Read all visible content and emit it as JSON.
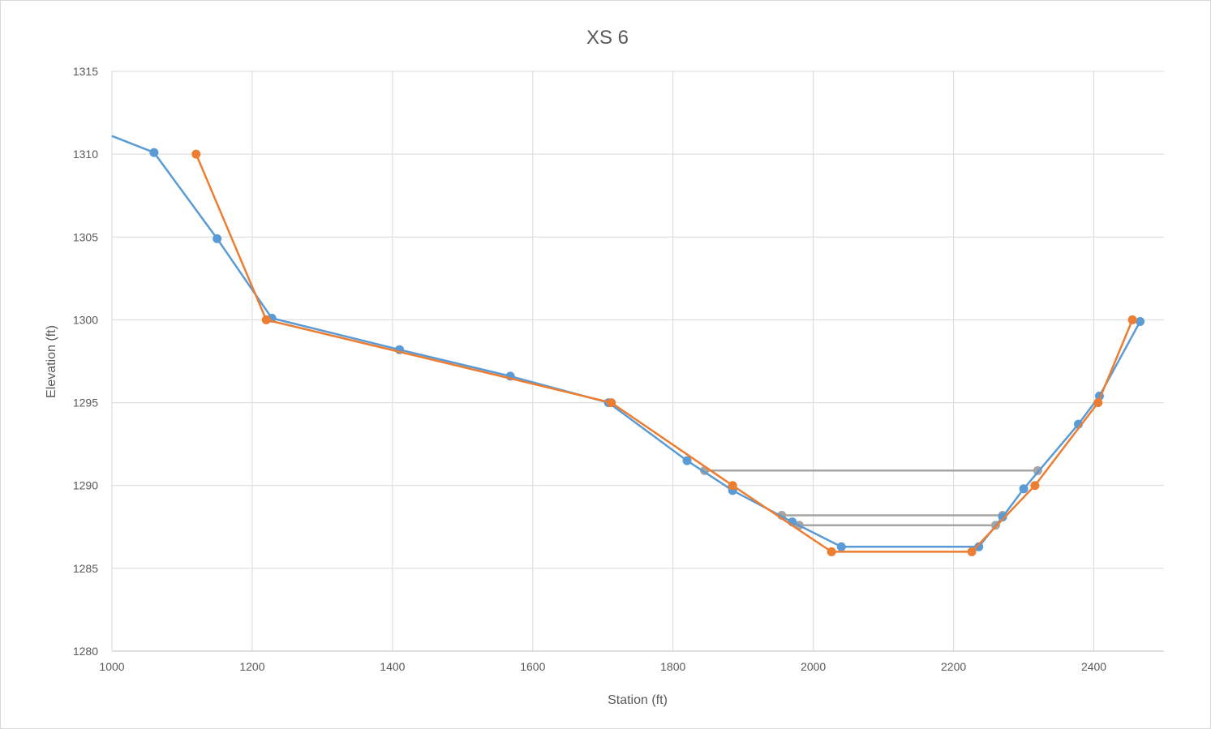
{
  "chart_data": {
    "type": "scatter",
    "title": "XS 6",
    "xlabel": "Station (ft)",
    "ylabel": "Elevation (ft)",
    "xlim": [
      1000,
      2500
    ],
    "ylim": [
      1280,
      1315
    ],
    "xticks": [
      1000,
      1200,
      1400,
      1600,
      1800,
      2000,
      2200,
      2400
    ],
    "yticks": [
      1280,
      1285,
      1290,
      1295,
      1300,
      1305,
      1310,
      1315
    ],
    "grid": true,
    "legend": "none",
    "colors": {
      "grid": "#d9d9d9",
      "axis": "#bfbfbf",
      "text": "#595959"
    },
    "series": [
      {
        "color": "#5b9bd5",
        "line_only_start": [
          1000,
          1311.1
        ],
        "points": [
          [
            1060,
            1310.1
          ],
          [
            1150,
            1304.9
          ],
          [
            1228,
            1300.1
          ],
          [
            1410,
            1298.2
          ],
          [
            1568,
            1296.6
          ],
          [
            1708,
            1295.0
          ],
          [
            1820,
            1291.5
          ],
          [
            1885,
            1289.7
          ],
          [
            1970,
            1287.8
          ],
          [
            2040,
            1286.3
          ],
          [
            2236,
            1286.3
          ],
          [
            2270,
            1288.1
          ],
          [
            2300,
            1289.8
          ],
          [
            2378,
            1293.7
          ],
          [
            2408,
            1295.4
          ],
          [
            2466,
            1299.9
          ]
        ]
      },
      {
        "color": "#ed7d31",
        "points": [
          [
            1120,
            1310.0
          ],
          [
            1220,
            1300.0
          ],
          [
            1712,
            1295.0
          ],
          [
            1885,
            1290.0
          ],
          [
            2026,
            1286.0
          ],
          [
            2226,
            1286.0
          ],
          [
            2316,
            1290.0
          ],
          [
            2406,
            1295.0
          ],
          [
            2455,
            1300.0
          ]
        ]
      }
    ],
    "water_levels": [
      {
        "color": "#a5a5a5",
        "points": [
          [
            1845,
            1290.9
          ],
          [
            2320,
            1290.9
          ]
        ]
      },
      {
        "color": "#a5a5a5",
        "points": [
          [
            1955,
            1288.2
          ],
          [
            2270,
            1288.2
          ]
        ]
      },
      {
        "color": "#a5a5a5",
        "points": [
          [
            1980,
            1287.6
          ],
          [
            2260,
            1287.6
          ]
        ]
      }
    ]
  }
}
